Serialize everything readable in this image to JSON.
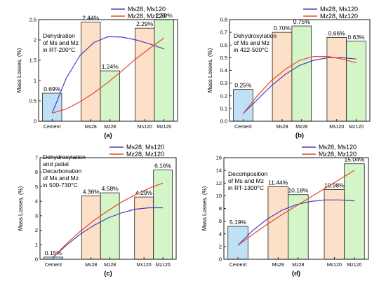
{
  "chart_data": [
    {
      "type": "bar",
      "panel_label": "(a)",
      "ylabel": "Mass Losses, (%)",
      "ylim": [
        0,
        2.5
      ],
      "yticks": [
        0,
        0.5,
        1,
        1.5,
        2,
        2.5
      ],
      "ytick_labels": [
        "0",
        "0.5",
        "1",
        "1.5",
        "2",
        "2.5"
      ],
      "annotation": [
        "Dehydration",
        "of Ms and Mz",
        "in RT-200°C"
      ],
      "categories": [
        "Cement",
        "Ms28",
        "Mz28",
        "Ms120",
        "Mz120"
      ],
      "values": [
        0.69,
        2.44,
        1.24,
        2.29,
        2.5
      ],
      "value_labels": [
        "0.69%",
        "2.44%",
        "1.24%",
        "2.29%",
        "2.50%"
      ],
      "bar_colors": [
        "#bfe0f5",
        "#fde0c8",
        "#d3f5c8",
        "#fde0c8",
        "#d3f5c8"
      ],
      "legend": [
        {
          "name": "Ms28, Ms120",
          "color": "#4b3fbf"
        },
        {
          "name": "Mz28, Mz120",
          "color": "#e8462c"
        }
      ],
      "legend_position": "top-right",
      "series": [
        {
          "name": "Ms28, Ms120",
          "color": "#4b3fbf",
          "x": [
            0,
            0.5,
            1,
            1.5,
            2,
            2.5,
            3,
            3.5,
            4
          ],
          "values": [
            0.2,
            1.05,
            1.62,
            1.94,
            2.08,
            2.07,
            2.0,
            1.9,
            1.78
          ]
        },
        {
          "name": "Mz28, Mz120",
          "color": "#e8462c",
          "x": [
            0,
            0.5,
            1,
            1.5,
            2,
            2.5,
            3,
            3.5,
            4
          ],
          "values": [
            0.2,
            0.3,
            0.48,
            0.7,
            0.96,
            1.24,
            1.54,
            1.8,
            2.05
          ]
        }
      ]
    },
    {
      "type": "bar",
      "panel_label": "(b)",
      "ylabel": "Mass Losses, (%)",
      "ylim": [
        0,
        0.8
      ],
      "yticks": [
        0,
        0.1,
        0.2,
        0.3,
        0.4,
        0.5,
        0.6,
        0.7,
        0.8
      ],
      "ytick_labels": [
        "0.0",
        "0.1",
        "0.2",
        "0.3",
        "0.4",
        "0.5",
        "0.6",
        "0.7",
        "0.8"
      ],
      "annotation": [
        "Dehydroxylation",
        "of Ms and Mz",
        "in 422-500°C"
      ],
      "categories": [
        "Cement",
        "Ms28",
        "Mz28",
        "Ms120",
        "Mz120"
      ],
      "values": [
        0.25,
        0.7,
        0.75,
        0.66,
        0.63
      ],
      "value_labels": [
        "0.25%",
        "0.70%",
        "0.75%",
        "0.66%",
        "0.63%"
      ],
      "bar_colors": [
        "#bfe0f5",
        "#fde0c8",
        "#d3f5c8",
        "#fde0c8",
        "#d3f5c8"
      ],
      "legend": [
        {
          "name": "Ms28, Ms120",
          "color": "#4b3fbf"
        },
        {
          "name": "Mz28, Mz120",
          "color": "#e8462c"
        }
      ],
      "legend_position": "top-right",
      "series": [
        {
          "name": "Ms28, Ms120",
          "color": "#4b3fbf",
          "x": [
            0,
            0.5,
            1,
            1.5,
            2,
            2.5,
            3,
            3.5,
            4
          ],
          "values": [
            0.06,
            0.17,
            0.28,
            0.37,
            0.44,
            0.48,
            0.5,
            0.5,
            0.49
          ]
        },
        {
          "name": "Mz28, Mz120",
          "color": "#e8462c",
          "x": [
            0,
            0.5,
            1,
            1.5,
            2,
            2.5,
            3,
            3.5,
            4
          ],
          "values": [
            0.06,
            0.2,
            0.32,
            0.41,
            0.48,
            0.51,
            0.51,
            0.49,
            0.46
          ]
        }
      ]
    },
    {
      "type": "bar",
      "panel_label": "(c)",
      "ylabel": "Mass Losses, (%)",
      "ylim": [
        0,
        7
      ],
      "yticks": [
        0,
        1,
        2,
        3,
        4,
        5,
        6,
        7
      ],
      "ytick_labels": [
        "0",
        "1",
        "2",
        "3",
        "4",
        "5",
        "6",
        "7"
      ],
      "annotation": [
        "Dehydroxylation",
        "and patial",
        "Decarbonation",
        "of Ms and Mz",
        "in 500-730°C"
      ],
      "categories": [
        "Cement",
        "Ms28",
        "Mz28",
        "Ms120",
        "Mz120"
      ],
      "values": [
        0.15,
        4.36,
        4.58,
        4.29,
        6.16
      ],
      "value_labels": [
        "0.15%",
        "4.36%",
        "4.58%",
        "4.29%",
        "6.16%"
      ],
      "bar_colors": [
        "#bfe0f5",
        "#fde0c8",
        "#d3f5c8",
        "#fde0c8",
        "#d3f5c8"
      ],
      "legend": [
        {
          "name": "Ms28, Ms120",
          "color": "#4b3fbf"
        },
        {
          "name": "Mz28, Mz120",
          "color": "#e8462c"
        }
      ],
      "legend_position": "top-right",
      "series": [
        {
          "name": "Ms28, Ms120",
          "color": "#4b3fbf",
          "x": [
            0,
            0.5,
            1,
            1.5,
            2,
            2.5,
            3,
            3.5,
            4
          ],
          "values": [
            0.15,
            1.0,
            1.75,
            2.35,
            2.85,
            3.2,
            3.45,
            3.55,
            3.55
          ]
        },
        {
          "name": "Mz28, Mz120",
          "color": "#e8462c",
          "x": [
            0,
            0.5,
            1,
            1.5,
            2,
            2.5,
            3,
            3.5,
            4
          ],
          "values": [
            0.15,
            1.1,
            1.95,
            2.7,
            3.35,
            3.95,
            4.45,
            4.9,
            5.25
          ]
        }
      ]
    },
    {
      "type": "bar",
      "panel_label": "(d)",
      "ylabel": "Mass Losses, (%)",
      "ylim": [
        0,
        16
      ],
      "yticks": [
        0,
        2,
        4,
        6,
        8,
        10,
        12,
        14,
        16
      ],
      "ytick_labels": [
        "0",
        "2",
        "4",
        "6",
        "8",
        "10",
        "12",
        "14",
        "16"
      ],
      "annotation": [
        "Decomposition",
        "of Ms and Mz",
        "in RT-1300°C"
      ],
      "categories": [
        "Cement",
        "Ms28",
        "Mz28",
        "Ms120",
        "Mz120"
      ],
      "values": [
        5.19,
        11.44,
        10.18,
        10.98,
        15.04
      ],
      "value_labels": [
        "5.19%",
        "11.44%",
        "10.18%",
        "10.98%",
        "15.04%"
      ],
      "bar_colors": [
        "#bfe0f5",
        "#fde0c8",
        "#d3f5c8",
        "#fde0c8",
        "#d3f5c8"
      ],
      "legend": [
        {
          "name": "Ms28, Ms120",
          "color": "#4b3fbf"
        },
        {
          "name": "Mz28, Mz120",
          "color": "#e8462c"
        }
      ],
      "legend_position": "top-right",
      "series": [
        {
          "name": "Ms28, Ms120",
          "color": "#4b3fbf",
          "x": [
            0,
            0.5,
            1,
            1.5,
            2,
            2.5,
            3,
            3.5,
            4
          ],
          "values": [
            2.2,
            4.5,
            6.3,
            7.7,
            8.6,
            9.1,
            9.35,
            9.35,
            9.2
          ]
        },
        {
          "name": "Mz28, Mz120",
          "color": "#e8462c",
          "x": [
            0,
            0.5,
            1,
            1.5,
            2,
            2.5,
            3,
            3.5,
            4
          ],
          "values": [
            2.2,
            3.9,
            5.5,
            7.0,
            8.4,
            9.8,
            11.2,
            12.6,
            14.0
          ]
        }
      ]
    }
  ]
}
